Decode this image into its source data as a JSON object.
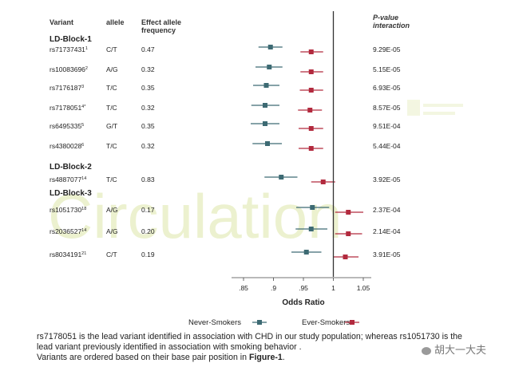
{
  "headers": {
    "variant": "Variant",
    "allele": "allele",
    "effect_allele_frequency": [
      "Effect allele",
      "frequency"
    ],
    "p_value": [
      "P-value",
      "interaction"
    ]
  },
  "watermark": "Circulation",
  "chart_data": {
    "type": "forest",
    "xlabel": "Odds Ratio",
    "xticks": [
      ".85",
      ".9",
      ".95",
      "1",
      "1.05"
    ],
    "xtick_values": [
      0.85,
      0.9,
      0.95,
      1.0,
      1.05
    ],
    "xlim": [
      0.82,
      1.08
    ],
    "reference_line": 1.0,
    "series": [
      {
        "name": "Never-Smokers",
        "color": "#3d6a73",
        "marker": "square"
      },
      {
        "name": "Ever-Smokers",
        "color": "#b22a3e",
        "marker": "square"
      }
    ],
    "blocks": [
      {
        "label": "LD-Block-1",
        "rows": [
          {
            "variant": "rs71737431",
            "sup": "1",
            "allele": "C/T",
            "frequency": "0.47",
            "p_interaction": "9.29E-05",
            "never": {
              "or": 0.895,
              "lo": 0.875,
              "hi": 0.915
            },
            "ever": {
              "or": 0.963,
              "lo": 0.945,
              "hi": 0.983
            }
          },
          {
            "variant": "rs10083696",
            "sup": "2",
            "allele": "A/G",
            "frequency": "0.32",
            "p_interaction": "5.15E-05",
            "never": {
              "or": 0.893,
              "lo": 0.87,
              "hi": 0.915
            },
            "ever": {
              "or": 0.963,
              "lo": 0.945,
              "hi": 0.983
            }
          },
          {
            "variant": "rs7176187",
            "sup": "3",
            "allele": "T/C",
            "frequency": "0.35",
            "p_interaction": "6.93E-05",
            "never": {
              "or": 0.888,
              "lo": 0.866,
              "hi": 0.91
            },
            "ever": {
              "or": 0.963,
              "lo": 0.944,
              "hi": 0.983
            }
          },
          {
            "variant": "rs7178051",
            "sup": "4*",
            "allele": "T/C",
            "frequency": "0.32",
            "p_interaction": "8.57E-05",
            "never": {
              "or": 0.886,
              "lo": 0.863,
              "hi": 0.91
            },
            "ever": {
              "or": 0.961,
              "lo": 0.941,
              "hi": 0.981
            }
          },
          {
            "variant": "rs6495335",
            "sup": "5",
            "allele": "G/T",
            "frequency": "0.35",
            "p_interaction": "9.51E-04",
            "never": {
              "or": 0.886,
              "lo": 0.862,
              "hi": 0.91
            },
            "ever": {
              "or": 0.963,
              "lo": 0.942,
              "hi": 0.983
            }
          },
          {
            "variant": "rs4380028",
            "sup": "6",
            "allele": "T/C",
            "frequency": "0.32",
            "p_interaction": "5.44E-04",
            "never": {
              "or": 0.89,
              "lo": 0.865,
              "hi": 0.914
            },
            "ever": {
              "or": 0.963,
              "lo": 0.942,
              "hi": 0.983
            }
          }
        ]
      },
      {
        "label": "LD-Block-2",
        "rows": [
          {
            "variant": "rs4887077",
            "sup": "14",
            "allele": "T/C",
            "frequency": "0.83",
            "p_interaction": "3.92E-05",
            "never": {
              "or": 0.913,
              "lo": 0.885,
              "hi": 0.94
            },
            "ever": {
              "or": 0.983,
              "lo": 0.963,
              "hi": 1.003
            }
          }
        ]
      },
      {
        "label": "LD-Block-3",
        "rows": [
          {
            "variant": "rs1051730",
            "sup": "18",
            "allele": "A/G",
            "frequency": "0.17",
            "p_interaction": "2.37E-04",
            "never": {
              "or": 0.965,
              "lo": 0.938,
              "hi": 0.993
            },
            "ever": {
              "or": 1.025,
              "lo": 1.003,
              "hi": 1.05
            }
          },
          {
            "variant": "rs2036527",
            "sup": "14",
            "allele": "A/G",
            "frequency": "0.20",
            "p_interaction": "2.14E-04",
            "never": {
              "or": 0.963,
              "lo": 0.937,
              "hi": 0.99
            },
            "ever": {
              "or": 1.025,
              "lo": 1.003,
              "hi": 1.048
            }
          },
          {
            "variant": "rs8034191",
            "sup": "21",
            "allele": "C/T",
            "frequency": "0.19",
            "p_interaction": "3.91E-05",
            "never": {
              "or": 0.955,
              "lo": 0.93,
              "hi": 0.98
            },
            "ever": {
              "or": 1.02,
              "lo": 1.0,
              "hi": 1.042
            }
          }
        ]
      }
    ]
  },
  "footnote": {
    "line1": "rs7178051 is the lead variant identified in association with CHD in our study population; whereas rs1051730 is the",
    "line2": "lead variant previously identified in association with smoking behavior .",
    "line3_prefix": "Variants are ordered based on their base pair position in ",
    "line3_bold": "Figure-1",
    "line3_suffix": "."
  },
  "wechat_label": "胡大一大夫"
}
